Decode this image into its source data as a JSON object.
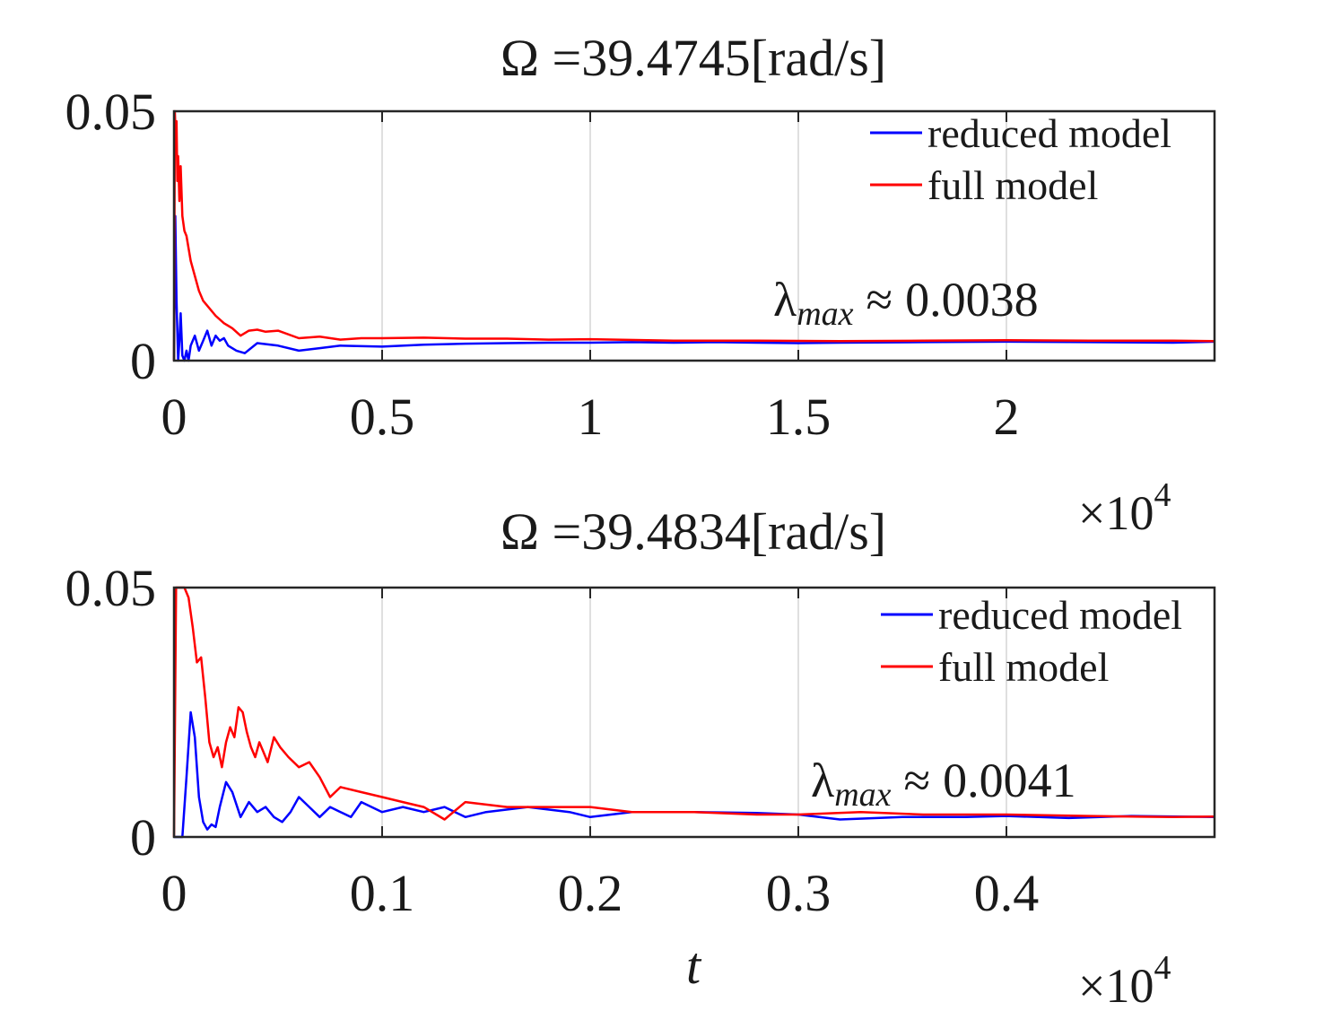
{
  "figure": {
    "xlabel": "t"
  },
  "chart_data": [
    {
      "type": "line",
      "title": "Ω =39.4745[rad/s]",
      "xlabel": "",
      "ylabel": "",
      "x_scale_label": "×10",
      "x_scale_exponent": "4",
      "xlim": [
        0,
        2.5
      ],
      "ylim": [
        0,
        0.05
      ],
      "xticks": [
        0,
        0.5,
        1,
        1.5,
        2
      ],
      "xtick_labels": [
        "0",
        "0.5",
        "1",
        "1.5",
        "2"
      ],
      "yticks": [
        0,
        0.05
      ],
      "ytick_labels": [
        "0",
        "0.05"
      ],
      "grid": "vertical",
      "legend_position": "top-right",
      "annotation": {
        "symbol": "λ",
        "subscript": "max",
        "approx": "≈",
        "value": "0.0038"
      },
      "series": [
        {
          "name": "reduced model",
          "color": "#0000ff",
          "x": [
            0.0,
            0.003,
            0.006,
            0.01,
            0.013,
            0.016,
            0.02,
            0.025,
            0.03,
            0.035,
            0.04,
            0.05,
            0.06,
            0.07,
            0.08,
            0.09,
            0.1,
            0.11,
            0.12,
            0.13,
            0.15,
            0.17,
            0.2,
            0.25,
            0.3,
            0.35,
            0.4,
            0.5,
            0.6,
            0.7,
            0.8,
            0.9,
            1.0,
            1.1,
            1.2,
            1.3,
            1.4,
            1.5,
            1.6,
            1.8,
            2.0,
            2.2,
            2.4,
            2.5
          ],
          "y": [
            0.0,
            0.029,
            0.012,
            0.0,
            0.004,
            0.0095,
            0.001,
            0.0,
            0.002,
            0.0,
            0.003,
            0.005,
            0.002,
            0.004,
            0.006,
            0.003,
            0.005,
            0.004,
            0.0045,
            0.003,
            0.002,
            0.0015,
            0.0035,
            0.003,
            0.002,
            0.0025,
            0.003,
            0.0028,
            0.0032,
            0.0034,
            0.0035,
            0.0036,
            0.0036,
            0.0037,
            0.0036,
            0.0037,
            0.0036,
            0.0035,
            0.0036,
            0.0037,
            0.0038,
            0.0037,
            0.0036,
            0.0038
          ]
        },
        {
          "name": "full model",
          "color": "#ff0000",
          "x": [
            0.0,
            0.002,
            0.004,
            0.006,
            0.008,
            0.01,
            0.013,
            0.016,
            0.02,
            0.025,
            0.03,
            0.04,
            0.05,
            0.06,
            0.07,
            0.08,
            0.1,
            0.12,
            0.14,
            0.16,
            0.18,
            0.2,
            0.22,
            0.25,
            0.3,
            0.35,
            0.4,
            0.45,
            0.5,
            0.6,
            0.7,
            0.8,
            0.9,
            1.0,
            1.2,
            1.4,
            1.6,
            1.8,
            2.0,
            2.2,
            2.4,
            2.5
          ],
          "y": [
            0.0,
            0.05,
            0.045,
            0.048,
            0.036,
            0.041,
            0.032,
            0.039,
            0.029,
            0.026,
            0.025,
            0.02,
            0.017,
            0.014,
            0.012,
            0.011,
            0.009,
            0.0075,
            0.0065,
            0.005,
            0.006,
            0.0062,
            0.0058,
            0.006,
            0.0045,
            0.0048,
            0.0042,
            0.0045,
            0.0045,
            0.0046,
            0.0044,
            0.0044,
            0.0042,
            0.0043,
            0.004,
            0.004,
            0.0039,
            0.004,
            0.0041,
            0.004,
            0.004,
            0.0039
          ]
        }
      ]
    },
    {
      "type": "line",
      "title": "Ω =39.4834[rad/s]",
      "xlabel": "t",
      "ylabel": "",
      "x_scale_label": "×10",
      "x_scale_exponent": "4",
      "xlim": [
        0,
        0.5
      ],
      "ylim": [
        0,
        0.05
      ],
      "xticks": [
        0,
        0.1,
        0.2,
        0.3,
        0.4
      ],
      "xtick_labels": [
        "0",
        "0.1",
        "0.2",
        "0.3",
        "0.4"
      ],
      "yticks": [
        0,
        0.05
      ],
      "ytick_labels": [
        "0",
        "0.05"
      ],
      "grid": "vertical",
      "legend_position": "top-right",
      "annotation": {
        "symbol": "λ",
        "subscript": "max",
        "approx": "≈",
        "value": "0.0041"
      },
      "series": [
        {
          "name": "reduced model",
          "color": "#0000ff",
          "x": [
            0.0,
            0.004,
            0.006,
            0.008,
            0.01,
            0.012,
            0.014,
            0.016,
            0.018,
            0.02,
            0.022,
            0.025,
            0.028,
            0.032,
            0.036,
            0.04,
            0.044,
            0.048,
            0.052,
            0.056,
            0.06,
            0.065,
            0.07,
            0.075,
            0.08,
            0.085,
            0.09,
            0.1,
            0.11,
            0.12,
            0.13,
            0.14,
            0.15,
            0.17,
            0.19,
            0.2,
            0.22,
            0.25,
            0.28,
            0.3,
            0.32,
            0.35,
            0.38,
            0.4,
            0.43,
            0.46,
            0.5
          ],
          "y": [
            0.0,
            0.0,
            0.012,
            0.025,
            0.02,
            0.008,
            0.003,
            0.0015,
            0.0025,
            0.002,
            0.006,
            0.011,
            0.009,
            0.004,
            0.007,
            0.005,
            0.006,
            0.004,
            0.003,
            0.005,
            0.008,
            0.006,
            0.004,
            0.006,
            0.005,
            0.004,
            0.007,
            0.005,
            0.006,
            0.005,
            0.006,
            0.004,
            0.005,
            0.006,
            0.005,
            0.004,
            0.005,
            0.005,
            0.0048,
            0.0045,
            0.0035,
            0.004,
            0.004,
            0.0042,
            0.0038,
            0.0042,
            0.004
          ]
        },
        {
          "name": "full model",
          "color": "#ff0000",
          "x": [
            0.0,
            0.001,
            0.003,
            0.005,
            0.007,
            0.009,
            0.011,
            0.013,
            0.015,
            0.017,
            0.019,
            0.021,
            0.023,
            0.025,
            0.027,
            0.029,
            0.031,
            0.033,
            0.035,
            0.037,
            0.039,
            0.041,
            0.043,
            0.045,
            0.048,
            0.051,
            0.055,
            0.06,
            0.065,
            0.07,
            0.075,
            0.08,
            0.09,
            0.1,
            0.11,
            0.12,
            0.13,
            0.14,
            0.16,
            0.18,
            0.2,
            0.22,
            0.25,
            0.28,
            0.3,
            0.33,
            0.36,
            0.4,
            0.44,
            0.48,
            0.5
          ],
          "y": [
            0.0,
            0.05,
            0.05,
            0.05,
            0.048,
            0.042,
            0.035,
            0.036,
            0.028,
            0.019,
            0.016,
            0.018,
            0.014,
            0.019,
            0.022,
            0.02,
            0.026,
            0.025,
            0.021,
            0.018,
            0.016,
            0.019,
            0.017,
            0.015,
            0.02,
            0.018,
            0.016,
            0.014,
            0.015,
            0.012,
            0.008,
            0.01,
            0.009,
            0.008,
            0.007,
            0.006,
            0.0035,
            0.007,
            0.006,
            0.006,
            0.006,
            0.005,
            0.005,
            0.0045,
            0.0045,
            0.005,
            0.0045,
            0.0045,
            0.0042,
            0.004,
            0.0041
          ]
        }
      ]
    }
  ]
}
